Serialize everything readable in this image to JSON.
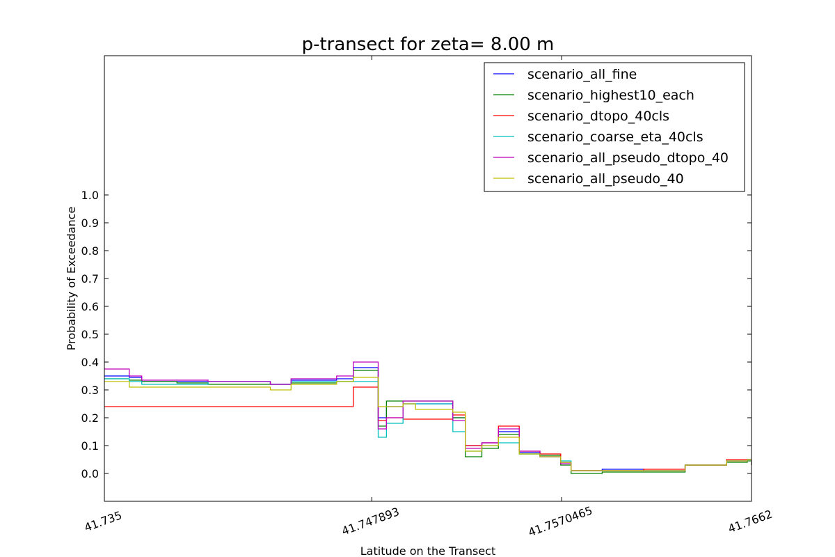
{
  "chart_data": {
    "type": "line",
    "title": "p-transect for zeta= 8.00 m",
    "xlabel": "Latitude on the Transect",
    "ylabel": "Probability of Exceedance",
    "xlim": [
      41.735,
      41.7662
    ],
    "ylim": [
      -0.1,
      1.5
    ],
    "xticks": [
      41.735,
      41.747893,
      41.7570465,
      41.7662
    ],
    "xtick_labels": [
      "41.735",
      "41.747893",
      "41.7570465",
      "41.7662"
    ],
    "yticks": [
      0.0,
      0.1,
      0.2,
      0.3,
      0.4,
      0.5,
      0.6,
      0.7,
      0.8,
      0.9,
      1.0
    ],
    "ytick_labels": [
      "0.0",
      "0.1",
      "0.2",
      "0.3",
      "0.4",
      "0.5",
      "0.6",
      "0.7",
      "0.8",
      "0.9",
      "1.0"
    ],
    "grid": false,
    "legend_position": "top-right",
    "series": [
      {
        "name": "scenario_all_fine",
        "color": "#0000ff",
        "x": [
          41.735,
          41.7362,
          41.7368,
          41.7385,
          41.74,
          41.743,
          41.744,
          41.7462,
          41.747,
          41.7478,
          41.7482,
          41.7486,
          41.7494,
          41.75,
          41.7518,
          41.7524,
          41.7532,
          41.754,
          41.755,
          41.756,
          41.757,
          41.7575,
          41.759,
          41.761,
          41.763,
          41.765,
          41.766,
          41.7662
        ],
        "y": [
          0.35,
          0.345,
          0.33,
          0.33,
          0.33,
          0.32,
          0.335,
          0.34,
          0.38,
          0.38,
          0.2,
          0.24,
          0.25,
          0.25,
          0.2,
          0.1,
          0.11,
          0.15,
          0.075,
          0.06,
          0.04,
          0.01,
          0.015,
          0.01,
          0.03,
          0.045,
          0.05,
          0.03
        ]
      },
      {
        "name": "scenario_highest10_each",
        "color": "#008000",
        "x": [
          41.735,
          41.7362,
          41.7368,
          41.7385,
          41.74,
          41.743,
          41.744,
          41.7462,
          41.747,
          41.7478,
          41.7482,
          41.7486,
          41.7494,
          41.75,
          41.7518,
          41.7524,
          41.7532,
          41.754,
          41.755,
          41.756,
          41.757,
          41.7575,
          41.759,
          41.761,
          41.763,
          41.765,
          41.766,
          41.7662
        ],
        "y": [
          0.34,
          0.335,
          0.33,
          0.325,
          0.32,
          0.32,
          0.325,
          0.33,
          0.37,
          0.37,
          0.17,
          0.26,
          0.26,
          0.26,
          0.2,
          0.06,
          0.09,
          0.14,
          0.07,
          0.065,
          0.03,
          0.0,
          0.005,
          0.005,
          0.03,
          0.04,
          0.045,
          0.03
        ]
      },
      {
        "name": "scenario_dtopo_40cls",
        "color": "#ff0000",
        "x": [
          41.735,
          41.7362,
          41.7368,
          41.7385,
          41.74,
          41.743,
          41.744,
          41.7462,
          41.747,
          41.7478,
          41.7482,
          41.7486,
          41.7494,
          41.75,
          41.7518,
          41.7524,
          41.7532,
          41.754,
          41.755,
          41.756,
          41.757,
          41.7575,
          41.759,
          41.761,
          41.763,
          41.765,
          41.766,
          41.7662
        ],
        "y": [
          0.24,
          0.24,
          0.24,
          0.24,
          0.24,
          0.24,
          0.24,
          0.24,
          0.31,
          0.31,
          0.19,
          0.2,
          0.195,
          0.195,
          0.21,
          0.1,
          0.11,
          0.17,
          0.08,
          0.07,
          0.04,
          0.01,
          0.01,
          0.015,
          0.03,
          0.05,
          0.05,
          0.03
        ]
      },
      {
        "name": "scenario_coarse_eta_40cls",
        "color": "#00bfbf",
        "x": [
          41.735,
          41.7362,
          41.7368,
          41.7385,
          41.74,
          41.743,
          41.744,
          41.7462,
          41.747,
          41.7478,
          41.7482,
          41.7486,
          41.7494,
          41.75,
          41.7518,
          41.7524,
          41.7532,
          41.754,
          41.755,
          41.756,
          41.757,
          41.7575,
          41.759,
          41.761,
          41.763,
          41.765,
          41.766,
          41.7662
        ],
        "y": [
          0.34,
          0.33,
          0.32,
          0.32,
          0.33,
          0.32,
          0.33,
          0.33,
          0.33,
          0.33,
          0.13,
          0.18,
          0.25,
          0.25,
          0.15,
          0.08,
          0.1,
          0.11,
          0.07,
          0.06,
          0.045,
          0.01,
          0.01,
          0.01,
          0.03,
          0.045,
          0.05,
          0.03
        ]
      },
      {
        "name": "scenario_all_pseudo_dtopo_40",
        "color": "#bf00bf",
        "x": [
          41.735,
          41.7362,
          41.7368,
          41.7385,
          41.74,
          41.743,
          41.744,
          41.7462,
          41.747,
          41.7478,
          41.7482,
          41.7486,
          41.7494,
          41.75,
          41.7518,
          41.7524,
          41.7532,
          41.754,
          41.755,
          41.756,
          41.757,
          41.7575,
          41.759,
          41.761,
          41.763,
          41.765,
          41.766,
          41.7662
        ],
        "y": [
          0.375,
          0.35,
          0.335,
          0.335,
          0.33,
          0.32,
          0.34,
          0.35,
          0.4,
          0.4,
          0.16,
          0.2,
          0.26,
          0.26,
          0.19,
          0.09,
          0.11,
          0.16,
          0.08,
          0.06,
          0.035,
          0.01,
          0.01,
          0.01,
          0.03,
          0.045,
          0.05,
          0.03
        ]
      },
      {
        "name": "scenario_all_pseudo_40",
        "color": "#bfbf00",
        "x": [
          41.735,
          41.7362,
          41.7368,
          41.7385,
          41.74,
          41.743,
          41.744,
          41.7462,
          41.747,
          41.7478,
          41.7482,
          41.7486,
          41.7494,
          41.75,
          41.7518,
          41.7524,
          41.7532,
          41.754,
          41.755,
          41.756,
          41.757,
          41.7575,
          41.759,
          41.761,
          41.763,
          41.765,
          41.766,
          41.7662
        ],
        "y": [
          0.33,
          0.31,
          0.31,
          0.31,
          0.31,
          0.3,
          0.32,
          0.33,
          0.345,
          0.345,
          0.24,
          0.24,
          0.25,
          0.23,
          0.22,
          0.08,
          0.1,
          0.13,
          0.07,
          0.06,
          0.04,
          0.01,
          0.01,
          0.01,
          0.03,
          0.045,
          0.05,
          0.03
        ]
      }
    ]
  }
}
